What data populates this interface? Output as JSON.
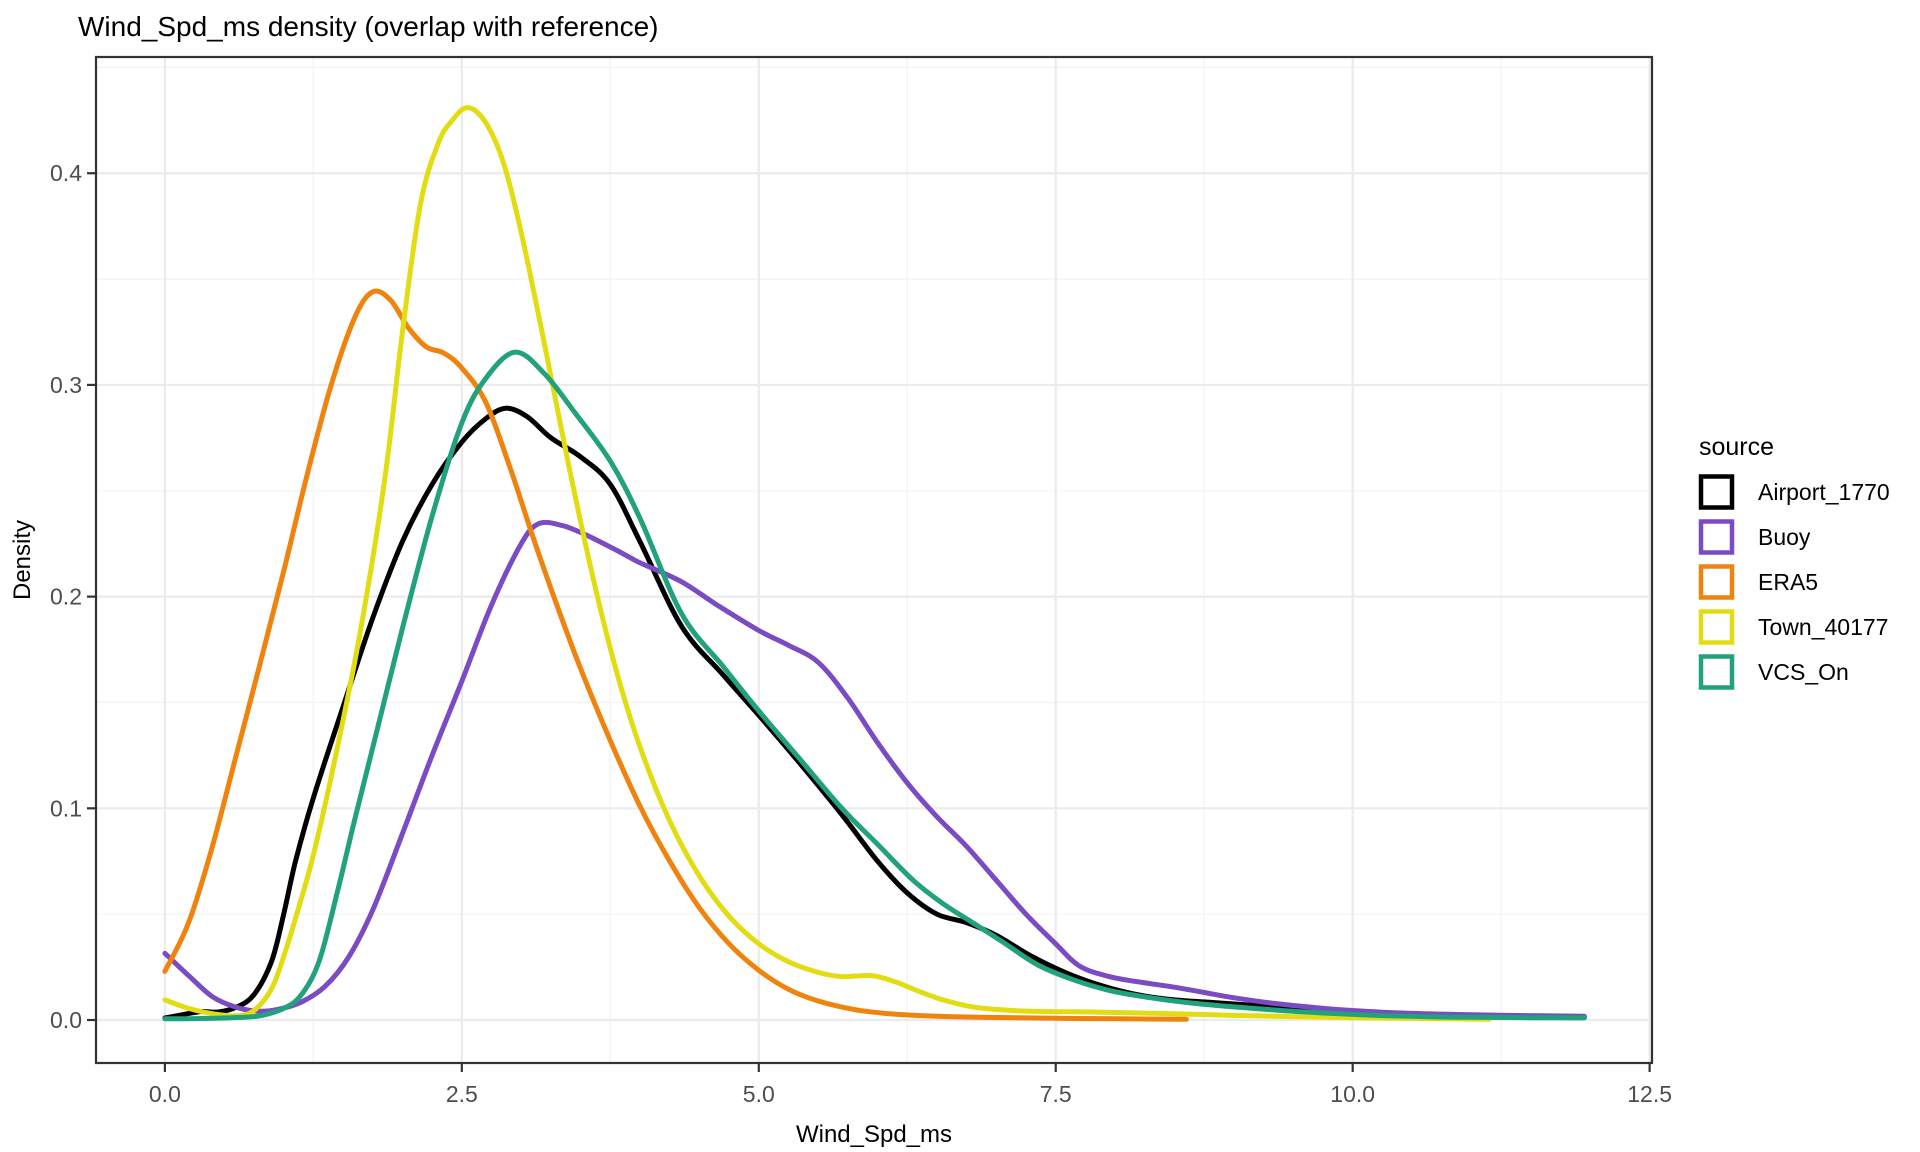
{
  "title": "Wind_Spd_ms density (overlap with reference)",
  "x_axis": {
    "title": "Wind_Spd_ms",
    "ticks": [
      {
        "value": 0,
        "label": "0.0"
      },
      {
        "value": 2.5,
        "label": "2.5"
      },
      {
        "value": 5,
        "label": "5.0"
      },
      {
        "value": 7.5,
        "label": "7.5"
      },
      {
        "value": 10,
        "label": "10.0"
      },
      {
        "value": 12.5,
        "label": "12.5"
      }
    ],
    "minor_ticks": [
      1.25,
      3.75,
      6.25,
      8.75,
      11.25
    ]
  },
  "y_axis": {
    "title": "Density",
    "ticks": [
      {
        "value": 0.0,
        "label": "0.0"
      },
      {
        "value": 0.1,
        "label": "0.1"
      },
      {
        "value": 0.2,
        "label": "0.2"
      },
      {
        "value": 0.3,
        "label": "0.3"
      },
      {
        "value": 0.4,
        "label": "0.4"
      }
    ],
    "minor_ticks": [
      0.05,
      0.15,
      0.25,
      0.35,
      0.45
    ]
  },
  "legend": {
    "title": "source",
    "entries": [
      {
        "label": "Airport_1770",
        "color": "#000000"
      },
      {
        "label": "Buoy",
        "color": "#7A4BC2"
      },
      {
        "label": "ERA5",
        "color": "#EF830D"
      },
      {
        "label": "Town_40177",
        "color": "#E2DD12"
      },
      {
        "label": "VCS_On",
        "color": "#21A17C"
      }
    ]
  },
  "colors": {
    "background": "#FFFFFF",
    "panel_border": "#333333",
    "grid_major": "#EBEBEB",
    "grid_minor": "#F4F4F4",
    "tick_mark": "#333333",
    "tick_label": "#4D4D4D"
  },
  "chart_data": {
    "type": "line",
    "title": "Wind_Spd_ms density (overlap with reference)",
    "xlabel": "Wind_Spd_ms",
    "ylabel": "Density",
    "xlim": [
      -0.58,
      12.52
    ],
    "ylim": [
      -0.0203,
      0.4549
    ],
    "x_ticks": [
      0,
      2.5,
      5,
      7.5,
      10,
      12.5
    ],
    "y_ticks": [
      0.0,
      0.1,
      0.2,
      0.3,
      0.4
    ],
    "grid": true,
    "legend_position": "right",
    "line_width": 5,
    "series": [
      {
        "name": "Airport_1770",
        "color": "#000000",
        "points": [
          [
            0,
            0.001
          ],
          [
            0.15,
            0.0025
          ],
          [
            0.3,
            0.004
          ],
          [
            0.45,
            0.0038
          ],
          [
            0.6,
            0.006
          ],
          [
            0.75,
            0.012
          ],
          [
            0.9,
            0.028
          ],
          [
            1.0,
            0.05
          ],
          [
            1.1,
            0.075
          ],
          [
            1.25,
            0.105
          ],
          [
            1.5,
            0.148
          ],
          [
            1.75,
            0.19
          ],
          [
            2.0,
            0.226
          ],
          [
            2.25,
            0.253
          ],
          [
            2.5,
            0.273
          ],
          [
            2.7,
            0.284
          ],
          [
            2.87,
            0.289
          ],
          [
            3.05,
            0.285
          ],
          [
            3.25,
            0.275
          ],
          [
            3.5,
            0.266
          ],
          [
            3.75,
            0.253
          ],
          [
            4.0,
            0.226
          ],
          [
            4.35,
            0.186
          ],
          [
            4.7,
            0.163
          ],
          [
            5.0,
            0.144
          ],
          [
            5.35,
            0.121
          ],
          [
            5.7,
            0.097
          ],
          [
            6.0,
            0.075
          ],
          [
            6.25,
            0.06
          ],
          [
            6.5,
            0.05
          ],
          [
            6.75,
            0.046
          ],
          [
            7.0,
            0.04
          ],
          [
            7.3,
            0.03
          ],
          [
            7.6,
            0.022
          ],
          [
            7.9,
            0.016
          ],
          [
            8.2,
            0.0118
          ],
          [
            8.5,
            0.0095
          ],
          [
            8.85,
            0.0082
          ],
          [
            9.2,
            0.0068
          ],
          [
            9.6,
            0.0052
          ],
          [
            10.0,
            0.004
          ],
          [
            10.5,
            0.003
          ],
          [
            11.0,
            0.0022
          ],
          [
            11.5,
            0.0016
          ],
          [
            11.95,
            0.0013
          ]
        ]
      },
      {
        "name": "Buoy",
        "color": "#7A4BC2",
        "points": [
          [
            0,
            0.0315
          ],
          [
            0.2,
            0.021
          ],
          [
            0.4,
            0.011
          ],
          [
            0.6,
            0.006
          ],
          [
            0.78,
            0.0042
          ],
          [
            0.95,
            0.005
          ],
          [
            1.15,
            0.0085
          ],
          [
            1.35,
            0.016
          ],
          [
            1.55,
            0.03
          ],
          [
            1.75,
            0.052
          ],
          [
            2.0,
            0.088
          ],
          [
            2.25,
            0.125
          ],
          [
            2.5,
            0.16
          ],
          [
            2.75,
            0.196
          ],
          [
            3.0,
            0.225
          ],
          [
            3.15,
            0.2345
          ],
          [
            3.35,
            0.2335
          ],
          [
            3.55,
            0.229
          ],
          [
            3.8,
            0.222
          ],
          [
            4.0,
            0.216
          ],
          [
            4.35,
            0.207
          ],
          [
            4.65,
            0.196
          ],
          [
            5.0,
            0.184
          ],
          [
            5.25,
            0.177
          ],
          [
            5.5,
            0.169
          ],
          [
            5.75,
            0.152
          ],
          [
            6.0,
            0.131
          ],
          [
            6.25,
            0.112
          ],
          [
            6.5,
            0.096
          ],
          [
            6.75,
            0.082
          ],
          [
            7.0,
            0.066
          ],
          [
            7.25,
            0.05
          ],
          [
            7.5,
            0.036
          ],
          [
            7.7,
            0.0255
          ],
          [
            7.95,
            0.0205
          ],
          [
            8.2,
            0.018
          ],
          [
            8.5,
            0.0155
          ],
          [
            8.75,
            0.013
          ],
          [
            9.0,
            0.0105
          ],
          [
            9.35,
            0.0078
          ],
          [
            9.7,
            0.0058
          ],
          [
            10.0,
            0.0045
          ],
          [
            10.35,
            0.0034
          ],
          [
            10.8,
            0.0027
          ],
          [
            11.3,
            0.0022
          ],
          [
            11.95,
            0.0018
          ]
        ]
      },
      {
        "name": "ERA5",
        "color": "#EF830D",
        "points": [
          [
            0,
            0.023
          ],
          [
            0.2,
            0.046
          ],
          [
            0.4,
            0.082
          ],
          [
            0.6,
            0.125
          ],
          [
            0.8,
            0.168
          ],
          [
            1.0,
            0.212
          ],
          [
            1.2,
            0.258
          ],
          [
            1.4,
            0.3
          ],
          [
            1.6,
            0.332
          ],
          [
            1.75,
            0.344
          ],
          [
            1.9,
            0.34
          ],
          [
            2.05,
            0.327
          ],
          [
            2.2,
            0.318
          ],
          [
            2.35,
            0.315
          ],
          [
            2.5,
            0.308
          ],
          [
            2.7,
            0.292
          ],
          [
            2.9,
            0.262
          ],
          [
            3.1,
            0.228
          ],
          [
            3.3,
            0.196
          ],
          [
            3.5,
            0.166
          ],
          [
            3.75,
            0.132
          ],
          [
            4.0,
            0.101
          ],
          [
            4.25,
            0.075
          ],
          [
            4.5,
            0.053
          ],
          [
            4.75,
            0.036
          ],
          [
            5.0,
            0.0235
          ],
          [
            5.25,
            0.0145
          ],
          [
            5.5,
            0.009
          ],
          [
            5.8,
            0.005
          ],
          [
            6.1,
            0.003
          ],
          [
            6.5,
            0.0018
          ],
          [
            7.0,
            0.0012
          ],
          [
            7.5,
            0.0008
          ],
          [
            8.0,
            0.0006
          ],
          [
            8.6,
            0.0004
          ]
        ]
      },
      {
        "name": "Town_40177",
        "color": "#E2DD12",
        "points": [
          [
            0,
            0.0095
          ],
          [
            0.2,
            0.0055
          ],
          [
            0.4,
            0.003
          ],
          [
            0.6,
            0.002
          ],
          [
            0.75,
            0.0045
          ],
          [
            0.9,
            0.015
          ],
          [
            1.0,
            0.03
          ],
          [
            1.1,
            0.048
          ],
          [
            1.25,
            0.078
          ],
          [
            1.45,
            0.128
          ],
          [
            1.65,
            0.185
          ],
          [
            1.85,
            0.255
          ],
          [
            2.0,
            0.325
          ],
          [
            2.15,
            0.385
          ],
          [
            2.3,
            0.414
          ],
          [
            2.42,
            0.425
          ],
          [
            2.55,
            0.431
          ],
          [
            2.7,
            0.424
          ],
          [
            2.85,
            0.405
          ],
          [
            3.0,
            0.372
          ],
          [
            3.2,
            0.318
          ],
          [
            3.4,
            0.262
          ],
          [
            3.6,
            0.21
          ],
          [
            3.8,
            0.165
          ],
          [
            4.0,
            0.129
          ],
          [
            4.25,
            0.094
          ],
          [
            4.5,
            0.068
          ],
          [
            4.75,
            0.049
          ],
          [
            5.0,
            0.036
          ],
          [
            5.25,
            0.0275
          ],
          [
            5.5,
            0.0225
          ],
          [
            5.7,
            0.0205
          ],
          [
            5.95,
            0.021
          ],
          [
            6.15,
            0.018
          ],
          [
            6.35,
            0.0135
          ],
          [
            6.55,
            0.0095
          ],
          [
            6.8,
            0.0062
          ],
          [
            7.1,
            0.0046
          ],
          [
            7.45,
            0.004
          ],
          [
            7.8,
            0.0038
          ],
          [
            8.2,
            0.0033
          ],
          [
            8.6,
            0.0028
          ],
          [
            9.0,
            0.0022
          ],
          [
            9.5,
            0.0016
          ],
          [
            10.0,
            0.0011
          ],
          [
            10.6,
            0.0007
          ],
          [
            11.15,
            0.0004
          ]
        ]
      },
      {
        "name": "VCS_On",
        "color": "#21A17C",
        "points": [
          [
            0,
            0.0006
          ],
          [
            0.3,
            0.0007
          ],
          [
            0.6,
            0.0012
          ],
          [
            0.8,
            0.002
          ],
          [
            1.0,
            0.0055
          ],
          [
            1.15,
            0.012
          ],
          [
            1.3,
            0.028
          ],
          [
            1.45,
            0.06
          ],
          [
            1.6,
            0.095
          ],
          [
            1.8,
            0.14
          ],
          [
            2.0,
            0.185
          ],
          [
            2.25,
            0.238
          ],
          [
            2.5,
            0.282
          ],
          [
            2.7,
            0.303
          ],
          [
            2.95,
            0.3155
          ],
          [
            3.2,
            0.305
          ],
          [
            3.45,
            0.287
          ],
          [
            3.75,
            0.264
          ],
          [
            4.0,
            0.237
          ],
          [
            4.35,
            0.192
          ],
          [
            4.7,
            0.167
          ],
          [
            5.0,
            0.146
          ],
          [
            5.35,
            0.123
          ],
          [
            5.7,
            0.1
          ],
          [
            6.0,
            0.083
          ],
          [
            6.3,
            0.066
          ],
          [
            6.55,
            0.055
          ],
          [
            6.8,
            0.046
          ],
          [
            7.05,
            0.037
          ],
          [
            7.35,
            0.026
          ],
          [
            7.65,
            0.019
          ],
          [
            7.95,
            0.014
          ],
          [
            8.3,
            0.0105
          ],
          [
            8.65,
            0.008
          ],
          [
            9.0,
            0.0062
          ],
          [
            9.4,
            0.0045
          ],
          [
            9.8,
            0.0032
          ],
          [
            10.2,
            0.0022
          ],
          [
            10.6,
            0.0016
          ],
          [
            11.0,
            0.0013
          ],
          [
            11.5,
            0.0011
          ],
          [
            11.95,
            0.001
          ]
        ]
      }
    ]
  }
}
